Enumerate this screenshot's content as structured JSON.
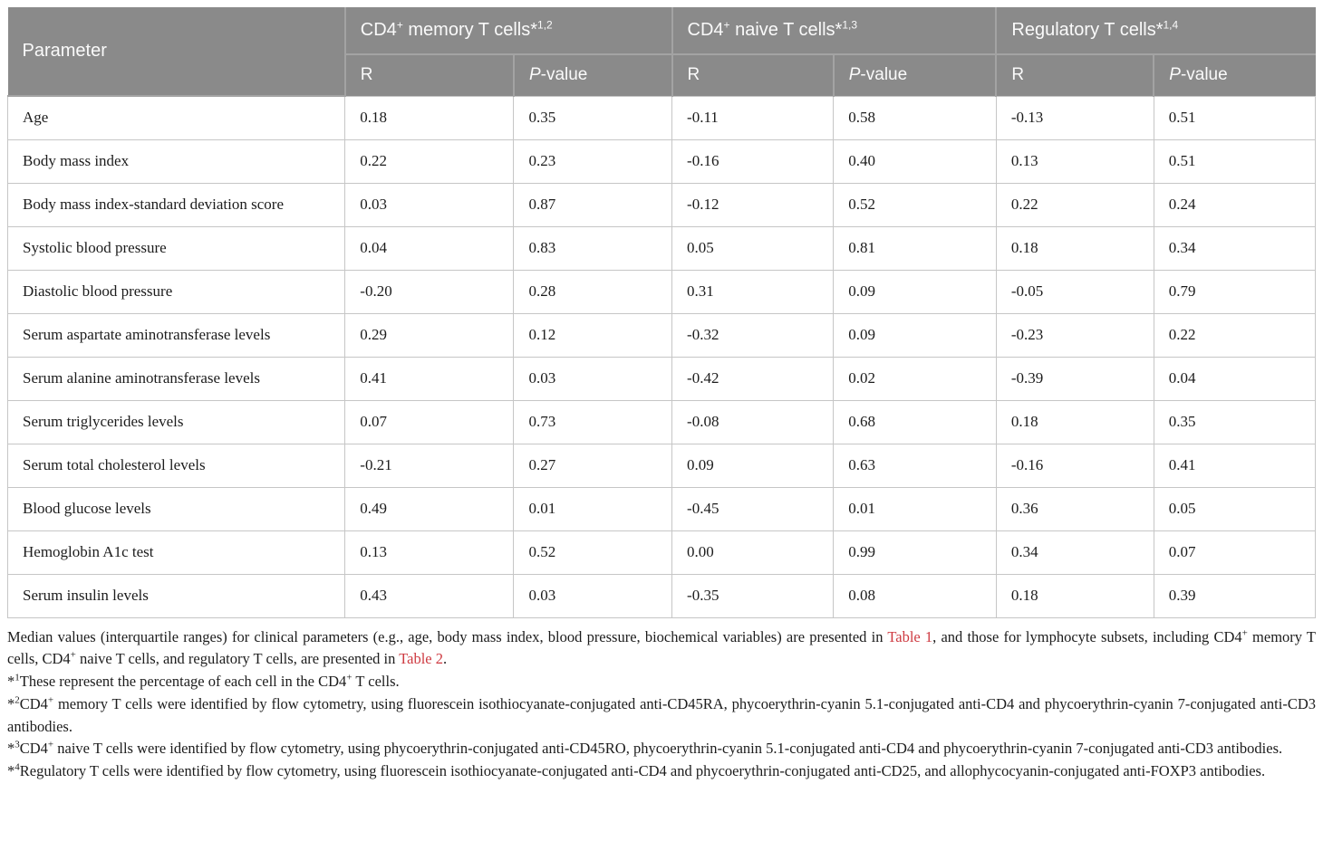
{
  "colors": {
    "header_bg": "#8a8a8a",
    "header_divider": "#a3a3a3",
    "header_text": "#fafafa",
    "body_border": "#c6c6c6",
    "body_text": "#1c1c1c",
    "link_red": "#ce3a41"
  },
  "table": {
    "parameter_header": "Parameter",
    "r_label": "R",
    "p_value_tokens": [
      {
        "text": "P",
        "italic": true
      },
      {
        "text": "-value"
      }
    ],
    "groups": [
      {
        "tokens": [
          {
            "text": "CD4"
          },
          {
            "text": "+",
            "sup": true
          },
          {
            "text": " memory T cells*"
          },
          {
            "text": "1,2",
            "sup": true
          }
        ]
      },
      {
        "tokens": [
          {
            "text": "CD4"
          },
          {
            "text": "+",
            "sup": true
          },
          {
            "text": " naive T cells*"
          },
          {
            "text": "1,3",
            "sup": true
          }
        ]
      },
      {
        "tokens": [
          {
            "text": "Regulatory T cells*"
          },
          {
            "text": "1,4",
            "sup": true
          }
        ]
      }
    ],
    "rows": [
      {
        "param": "Age",
        "values": [
          "0.18",
          "0.35",
          "-0.11",
          "0.58",
          "-0.13",
          "0.51"
        ]
      },
      {
        "param": "Body mass index",
        "values": [
          "0.22",
          "0.23",
          "-0.16",
          "0.40",
          "0.13",
          "0.51"
        ]
      },
      {
        "param": "Body mass index-standard deviation score",
        "values": [
          "0.03",
          "0.87",
          "-0.12",
          "0.52",
          "0.22",
          "0.24"
        ]
      },
      {
        "param": "Systolic blood pressure",
        "values": [
          "0.04",
          "0.83",
          "0.05",
          "0.81",
          "0.18",
          "0.34"
        ]
      },
      {
        "param": "Diastolic blood pressure",
        "values": [
          "-0.20",
          "0.28",
          "0.31",
          "0.09",
          "-0.05",
          "0.79"
        ]
      },
      {
        "param": "Serum aspartate aminotransferase levels",
        "values": [
          "0.29",
          "0.12",
          "-0.32",
          "0.09",
          "-0.23",
          "0.22"
        ]
      },
      {
        "param": "Serum alanine aminotransferase levels",
        "values": [
          "0.41",
          "0.03",
          "-0.42",
          "0.02",
          "-0.39",
          "0.04"
        ]
      },
      {
        "param": "Serum triglycerides levels",
        "values": [
          "0.07",
          "0.73",
          "-0.08",
          "0.68",
          "0.18",
          "0.35"
        ]
      },
      {
        "param": "Serum total cholesterol levels",
        "values": [
          "-0.21",
          "0.27",
          "0.09",
          "0.63",
          "-0.16",
          "0.41"
        ]
      },
      {
        "param": "Blood glucose levels",
        "values": [
          "0.49",
          "0.01",
          "-0.45",
          "0.01",
          "0.36",
          "0.05"
        ]
      },
      {
        "param": "Hemoglobin A1c test",
        "values": [
          "0.13",
          "0.52",
          "0.00",
          "0.99",
          "0.34",
          "0.07"
        ]
      },
      {
        "param": "Serum insulin levels",
        "values": [
          "0.43",
          "0.03",
          "-0.35",
          "0.08",
          "0.18",
          "0.39"
        ]
      }
    ]
  },
  "footnotes": [
    {
      "tokens": [
        {
          "text": "Median values (interquartile ranges) for clinical parameters (e.g., age, body mass index, blood pressure, biochemical variables) are presented in "
        },
        {
          "text": "Table 1",
          "link": true,
          "name": "table-1-link"
        },
        {
          "text": ", and those for lymphocyte subsets, including CD4"
        },
        {
          "text": "+",
          "sup": true
        },
        {
          "text": " memory T cells, CD4"
        },
        {
          "text": "+",
          "sup": true
        },
        {
          "text": " naive T cells, and regulatory T cells, are presented in "
        },
        {
          "text": "Table 2",
          "link": true,
          "name": "table-2-link"
        },
        {
          "text": "."
        }
      ]
    },
    {
      "tokens": [
        {
          "text": "*"
        },
        {
          "text": "1",
          "sup": true
        },
        {
          "text": "These represent the percentage of each cell in the CD4"
        },
        {
          "text": "+",
          "sup": true
        },
        {
          "text": " T cells."
        }
      ]
    },
    {
      "tokens": [
        {
          "text": "*"
        },
        {
          "text": "2",
          "sup": true
        },
        {
          "text": "CD4"
        },
        {
          "text": "+",
          "sup": true
        },
        {
          "text": " memory T cells were identified by flow cytometry, using fluorescein isothiocyanate-conjugated anti-CD45RA, phycoerythrin-cyanin 5.1-conjugated anti-CD4 and phycoerythrin-cyanin 7-conjugated anti-CD3 antibodies."
        }
      ]
    },
    {
      "tokens": [
        {
          "text": "*"
        },
        {
          "text": "3",
          "sup": true
        },
        {
          "text": "CD4"
        },
        {
          "text": "+",
          "sup": true
        },
        {
          "text": " naive T cells were identified by flow cytometry, using phycoerythrin-conjugated anti-CD45RO, phycoerythrin-cyanin 5.1-conjugated anti-CD4 and phycoerythrin-cyanin 7-conjugated anti-CD3 antibodies."
        }
      ]
    },
    {
      "tokens": [
        {
          "text": "*"
        },
        {
          "text": "4",
          "sup": true
        },
        {
          "text": "Regulatory T cells were identified by flow cytometry, using fluorescein isothiocyanate-conjugated anti-CD4 and phycoerythrin-conjugated anti-CD25, and allophycocyanin-conjugated anti-FOXP3 antibodies."
        }
      ]
    }
  ]
}
